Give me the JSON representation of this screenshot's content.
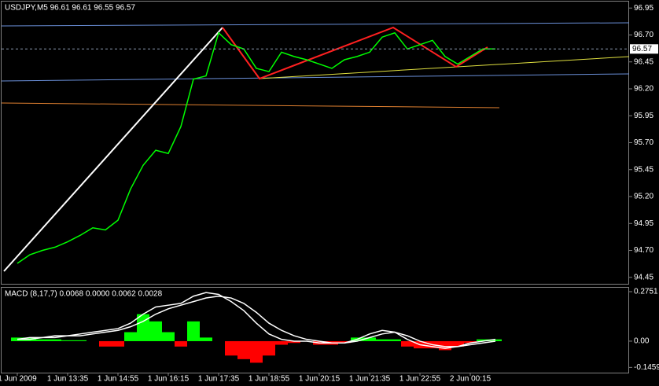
{
  "chart_data": [
    {
      "type": "line",
      "title": "USDJPY,M5  96.61 96.61 96.55 96.57",
      "categories": [
        "1 Jun 2009",
        null,
        null,
        null,
        "1 Jun 13:35",
        null,
        null,
        null,
        "1 Jun 14:55",
        null,
        null,
        null,
        "1 Jun 16:15",
        null,
        null,
        null,
        "1 Jun 17:35",
        null,
        null,
        null,
        "1 Jun 18:55",
        null,
        null,
        null,
        "1 Jun 20:15",
        null,
        null,
        null,
        "1 Jun 21:35",
        null,
        null,
        null,
        "1 Jun 22:55",
        null,
        null,
        null,
        "2 Jun 00:15",
        null,
        null
      ],
      "values": [
        94.58,
        94.66,
        94.7,
        94.73,
        94.78,
        94.84,
        94.91,
        94.89,
        94.98,
        95.27,
        95.49,
        95.63,
        95.6,
        95.85,
        96.29,
        96.32,
        96.72,
        96.61,
        96.57,
        96.39,
        96.36,
        96.54,
        96.5,
        96.47,
        96.43,
        96.39,
        96.47,
        96.5,
        96.54,
        96.68,
        96.72,
        96.57,
        96.61,
        96.65,
        96.5,
        96.43,
        96.5,
        96.57,
        96.57
      ],
      "color": "#00ff00",
      "last_price": 96.57,
      "ylim": [
        94.39,
        97.01
      ],
      "yticks": [
        96.95,
        {
          "value": 96.7,
          "label": "96.70"
        },
        96.45,
        {
          "value": 96.2,
          "label": "96.20"
        },
        95.95,
        {
          "value": 95.7,
          "label": "95.70"
        },
        95.45,
        {
          "value": 95.2,
          "label": "95.20"
        },
        94.95,
        {
          "value": 94.7,
          "label": "94.70"
        },
        94.45
      ]
    },
    {
      "type": "macd",
      "title": "MACD (8,17,7) 0.0068 0.0000 0.0062 0.0028",
      "histogram": [
        0.02,
        0.02,
        0.01,
        0.01,
        0.005,
        0.005,
        0.0,
        -0.03,
        -0.03,
        0.05,
        0.15,
        0.11,
        0.05,
        -0.03,
        0.11,
        0.02,
        0.0,
        -0.08,
        -0.1,
        -0.12,
        -0.08,
        -0.02,
        -0.01,
        0.0,
        -0.02,
        -0.02,
        -0.01,
        0.02,
        0.02,
        0.01,
        0.01,
        -0.03,
        -0.04,
        -0.04,
        -0.05,
        -0.03,
        -0.01,
        0.01,
        0.01
      ],
      "positive_color": "#00ff00",
      "negative_color": "#ff0000",
      "series": [
        {
          "color": "#ffffff",
          "values": [
            0.01,
            0.02,
            0.02,
            0.03,
            0.03,
            0.04,
            0.05,
            0.06,
            0.07,
            0.1,
            0.15,
            0.19,
            0.2,
            0.21,
            0.25,
            0.27,
            0.26,
            0.22,
            0.17,
            0.1,
            0.04,
            0.01,
            0.0,
            0.0,
            -0.01,
            -0.01,
            -0.01,
            0.01,
            0.04,
            0.06,
            0.05,
            0.01,
            -0.02,
            -0.03,
            -0.04,
            -0.03,
            -0.01,
            0.0,
            0.01
          ]
        },
        {
          "color": "#ffffff",
          "values": [
            0.01,
            0.01,
            0.02,
            0.02,
            0.03,
            0.03,
            0.04,
            0.05,
            0.06,
            0.08,
            0.11,
            0.15,
            0.18,
            0.2,
            0.22,
            0.24,
            0.25,
            0.24,
            0.21,
            0.16,
            0.1,
            0.06,
            0.03,
            0.01,
            0.0,
            -0.01,
            -0.01,
            0.0,
            0.02,
            0.04,
            0.05,
            0.03,
            0.0,
            -0.02,
            -0.03,
            -0.03,
            -0.02,
            -0.01,
            0.0
          ]
        }
      ],
      "ylim": [
        -0.175,
        0.297
      ],
      "yticks": [
        0.2751,
        {
          "value": 0,
          "label": "0.00"
        },
        -0.1459
      ]
    }
  ]
}
